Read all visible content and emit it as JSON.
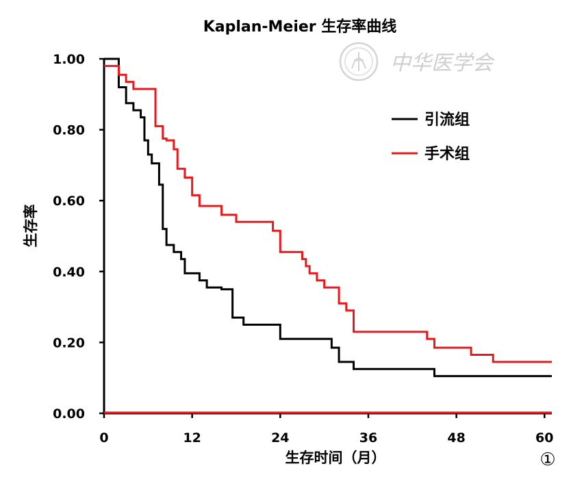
{
  "chart_data": {
    "type": "line",
    "title": "Kaplan-Meier 生存率曲线",
    "xlabel": "生存时间（月）",
    "ylabel": "生存率",
    "xlim": [
      0,
      61
    ],
    "ylim": [
      0,
      1
    ],
    "xticks": [
      "0",
      "12",
      "24",
      "36",
      "48",
      "60"
    ],
    "xtick_values": [
      0,
      12,
      24,
      36,
      48,
      60
    ],
    "yticks": [
      "0.00",
      "0.20",
      "0.40",
      "0.60",
      "0.80",
      "1.00"
    ],
    "ytick_values": [
      0,
      0.2,
      0.4,
      0.6,
      0.8,
      1.0
    ],
    "step": true,
    "grid": false,
    "legend_position": "top-right",
    "series": [
      {
        "name": "引流组",
        "color": "#000000",
        "x": [
          0,
          2,
          3,
          4,
          5,
          5.5,
          6,
          6.5,
          7.5,
          8,
          8.5,
          9.5,
          10.5,
          11,
          13,
          14,
          16,
          17.5,
          19,
          24,
          31,
          32,
          34,
          45,
          61
        ],
        "y": [
          1.0,
          0.92,
          0.875,
          0.855,
          0.835,
          0.77,
          0.73,
          0.705,
          0.645,
          0.52,
          0.475,
          0.455,
          0.435,
          0.395,
          0.375,
          0.355,
          0.35,
          0.27,
          0.25,
          0.21,
          0.185,
          0.145,
          0.125,
          0.105,
          0.105
        ]
      },
      {
        "name": "手术组",
        "color": "#e8191d",
        "x": [
          0,
          1,
          2,
          3,
          4,
          7,
          8,
          8.5,
          9.5,
          10,
          11,
          12,
          13,
          16,
          18,
          23,
          24,
          27,
          27.5,
          28,
          29,
          30,
          32,
          33,
          34,
          44,
          45,
          50,
          53,
          61
        ],
        "y": [
          0.98,
          0.98,
          0.955,
          0.935,
          0.915,
          0.81,
          0.775,
          0.77,
          0.745,
          0.69,
          0.665,
          0.615,
          0.585,
          0.56,
          0.54,
          0.515,
          0.455,
          0.435,
          0.415,
          0.395,
          0.375,
          0.355,
          0.31,
          0.29,
          0.23,
          0.21,
          0.185,
          0.165,
          0.145,
          0.145
        ]
      }
    ]
  },
  "watermark": {
    "text": "中华医学会"
  },
  "figure_number": "①"
}
